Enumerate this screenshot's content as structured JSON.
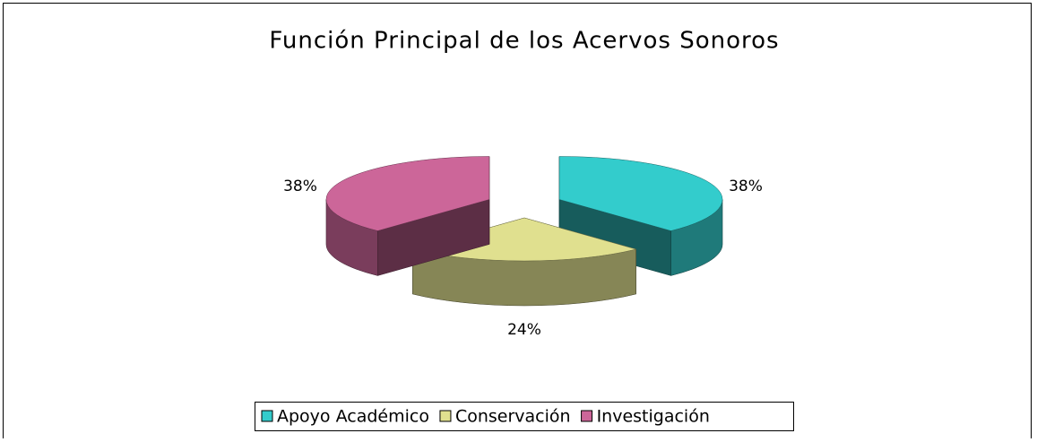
{
  "chart_data": {
    "type": "pie",
    "title": "Función Principal de los Acervos Sonoros",
    "categories": [
      "Apoyo Académico",
      "Conservación",
      "Investigación"
    ],
    "values": [
      38,
      24,
      38
    ],
    "value_labels": [
      "38%",
      "24%",
      "38%"
    ],
    "colors": [
      "#33cccc",
      "#e0e08f",
      "#cc6699"
    ],
    "legend": "bottom"
  }
}
